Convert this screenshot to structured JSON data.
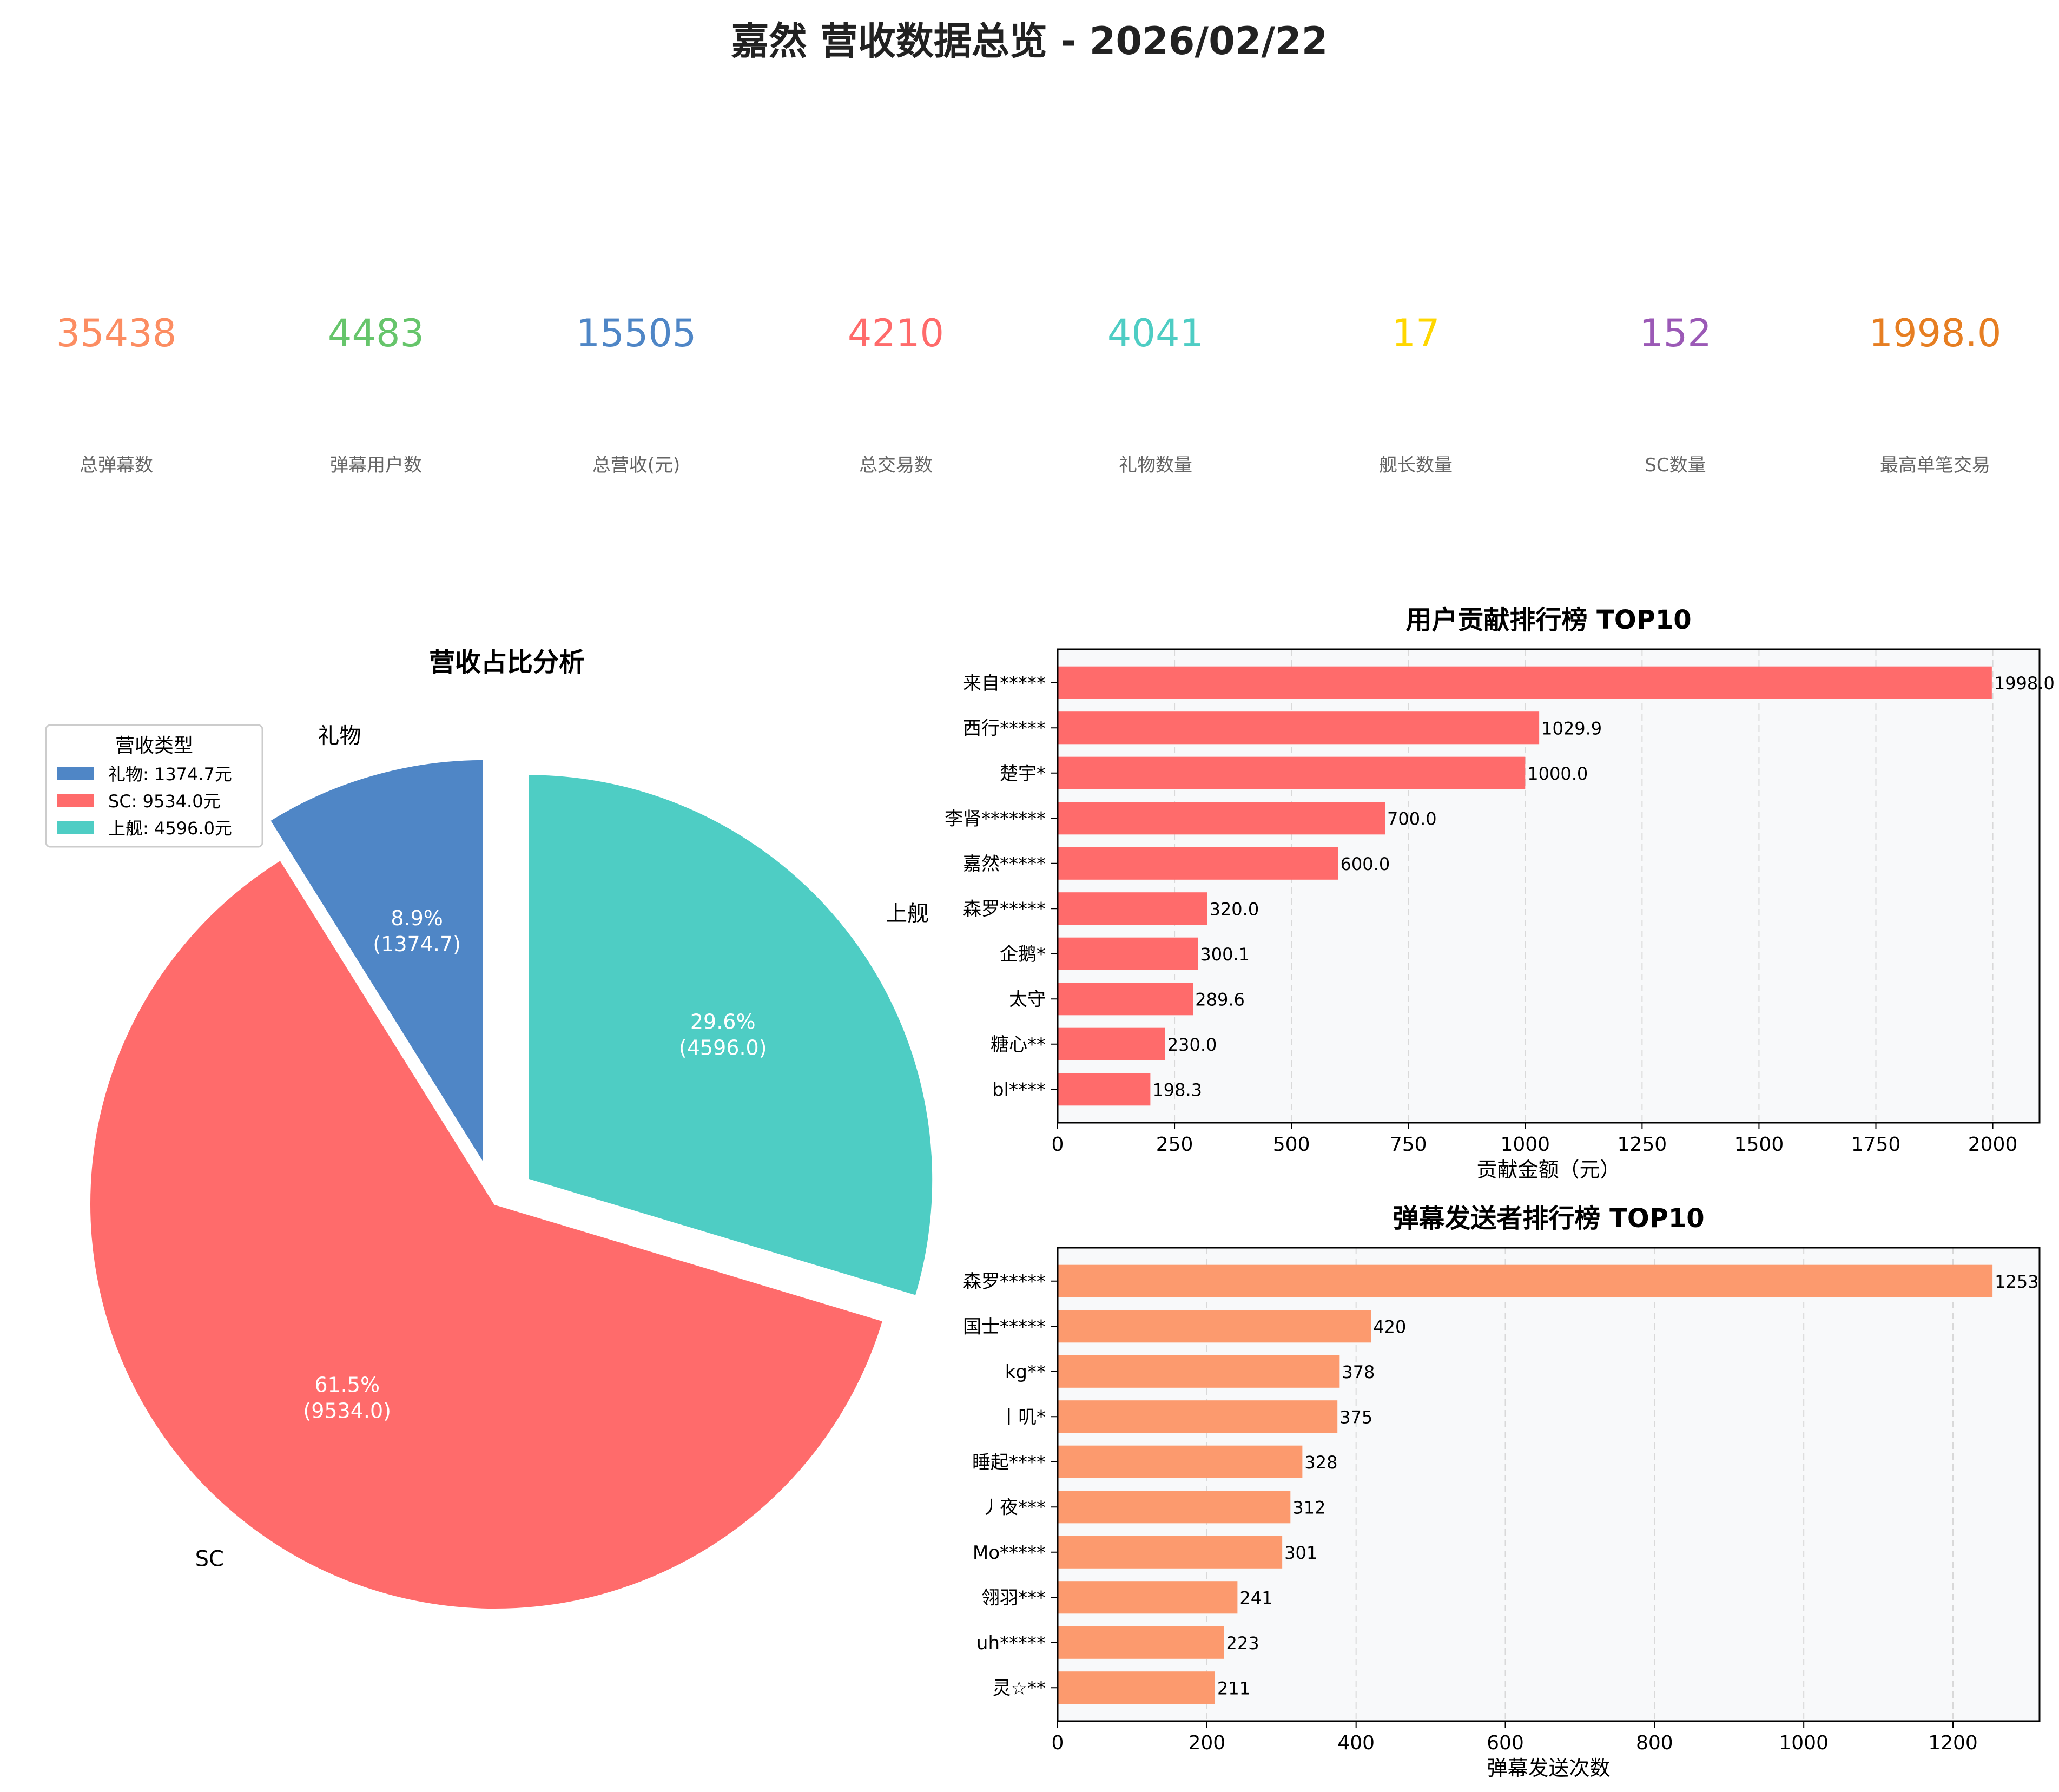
{
  "title": "嘉然 营收数据总览 - 2026/02/22",
  "stats": [
    {
      "value": "35438",
      "label": "总弹幕数",
      "color": "#FC8D62"
    },
    {
      "value": "4483",
      "label": "弹幕用户数",
      "color": "#66C56B"
    },
    {
      "value": "15505",
      "label": "总营收(元)",
      "color": "#4F86C6"
    },
    {
      "value": "4210",
      "label": "总交易数",
      "color": "#FF6B6B"
    },
    {
      "value": "4041",
      "label": "礼物数量",
      "color": "#4ECDC4"
    },
    {
      "value": "17",
      "label": "舰长数量",
      "color": "#FFD700"
    },
    {
      "value": "152",
      "label": "SC数量",
      "color": "#9B59B6"
    },
    {
      "value": "1998.0",
      "label": "最高单笔交易",
      "color": "#E67E22"
    }
  ],
  "chart_data": [
    {
      "type": "pie",
      "title": "营收占比分析",
      "legend_title": "营收类型",
      "legend_position": "top-left",
      "slices": [
        {
          "label": "礼物",
          "value": 1374.7,
          "percent": "8.9%",
          "value_label": "(1374.7)",
          "legend": "礼物: 1374.7元",
          "color": "#4F86C6"
        },
        {
          "label": "SC",
          "value": 9534.0,
          "percent": "61.5%",
          "value_label": "(9534.0)",
          "legend": "SC: 9534.0元",
          "color": "#FF6B6B"
        },
        {
          "label": "上舰",
          "value": 4596.0,
          "percent": "29.6%",
          "value_label": "(4596.0)",
          "legend": "上舰: 4596.0元",
          "color": "#4ECDC4"
        }
      ]
    },
    {
      "type": "bar",
      "orientation": "horizontal",
      "title": "用户贡献排行榜 TOP10",
      "xlabel": "贡献金额（元）",
      "xlim": [
        0,
        2100
      ],
      "xticks": [
        0,
        250,
        500,
        750,
        1000,
        1250,
        1500,
        1750,
        2000
      ],
      "grid": true,
      "color": "#FF6B6B",
      "categories": [
        "来自*****",
        "西行*****",
        "楚宇*",
        "李肾*******",
        "嘉然*****",
        "森罗*****",
        "企鹅*",
        "太守",
        "糖心**",
        "bl****"
      ],
      "values": [
        1998.0,
        1029.9,
        1000.0,
        700.0,
        600.0,
        320.0,
        300.1,
        289.6,
        230.0,
        198.3
      ],
      "value_labels": [
        "1998.0",
        "1029.9",
        "1000.0",
        "700.0",
        "600.0",
        "320.0",
        "300.1",
        "289.6",
        "230.0",
        "198.3"
      ]
    },
    {
      "type": "bar",
      "orientation": "horizontal",
      "title": "弹幕发送者排行榜 TOP10",
      "xlabel": "弹幕发送次数",
      "xlim": [
        0,
        1316
      ],
      "xticks": [
        0,
        200,
        400,
        600,
        800,
        1000,
        1200
      ],
      "grid": true,
      "color": "#FC9A6E",
      "categories": [
        "森罗*****",
        "国士*****",
        "kg**",
        "丨叽*",
        "睡起****",
        "丿夜***",
        "Mo*****",
        "翎羽***",
        "uh*****",
        "灵☆**"
      ],
      "values": [
        1253,
        420,
        378,
        375,
        328,
        312,
        301,
        241,
        223,
        211
      ],
      "value_labels": [
        "1253",
        "420",
        "378",
        "375",
        "328",
        "312",
        "301",
        "241",
        "223",
        "211"
      ]
    }
  ]
}
